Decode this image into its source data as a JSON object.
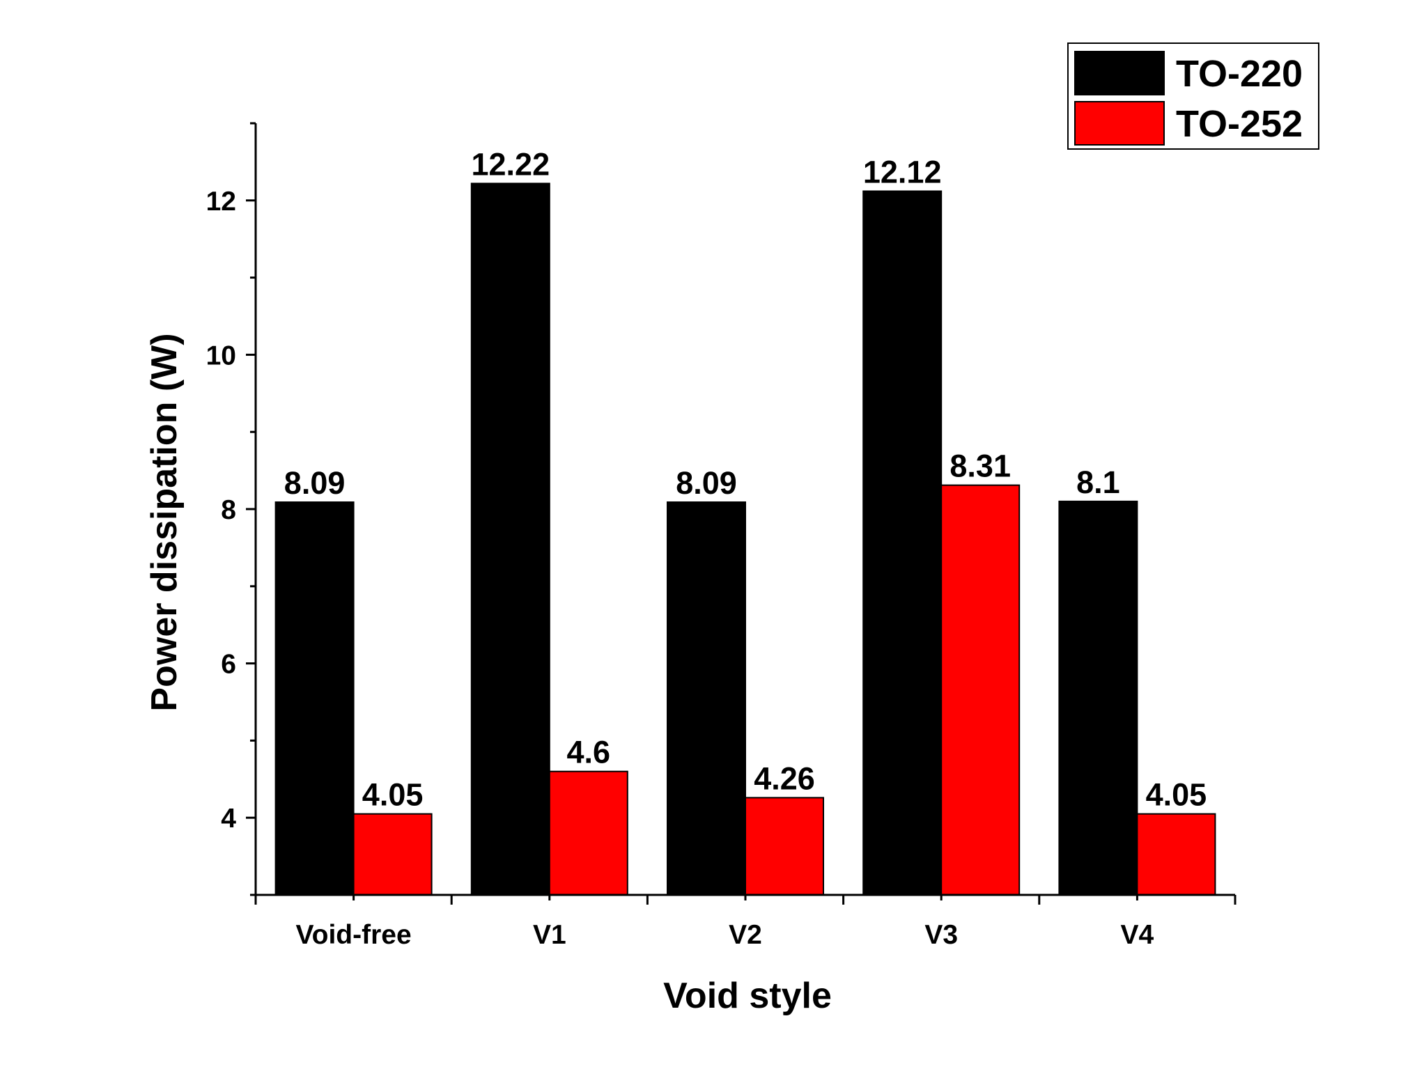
{
  "chart_data": {
    "type": "bar",
    "title": "",
    "xlabel": "Void style",
    "ylabel": "Power dissipation (W)",
    "categories": [
      "Void-free",
      "V1",
      "V2",
      "V3",
      "V4"
    ],
    "series": [
      {
        "name": "TO-220",
        "color": "#000000",
        "values": [
          8.09,
          12.22,
          8.09,
          12.12,
          8.1
        ],
        "labels": [
          "8.09",
          "12.22",
          "8.09",
          "12.12",
          "8.1"
        ]
      },
      {
        "name": "TO-252",
        "color": "#ff0000",
        "values": [
          4.05,
          4.6,
          4.26,
          8.31,
          4.05
        ],
        "labels": [
          "4.05",
          "4.6",
          "4.26",
          "8.31",
          "4.05"
        ]
      }
    ],
    "ylim": [
      3,
      13
    ],
    "yticks": [
      4,
      6,
      8,
      10,
      12
    ],
    "yticks_minor": [
      3,
      5,
      7,
      9,
      11,
      13
    ],
    "grid": false,
    "legend_position": "top-right"
  }
}
